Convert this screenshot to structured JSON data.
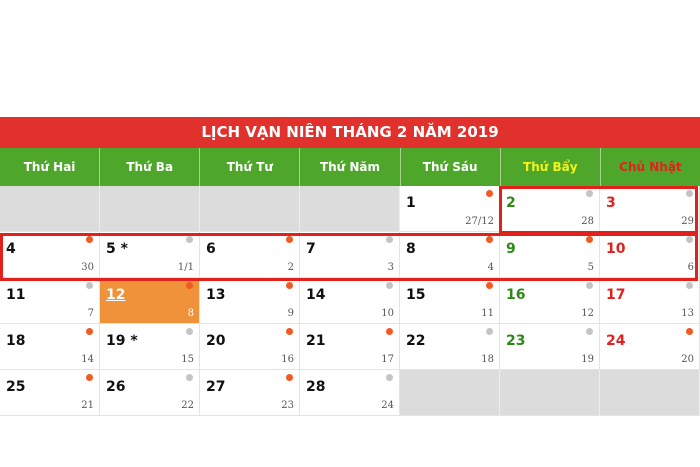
{
  "title": "LỊCH VẠN NIÊN THÁNG 2 NĂM 2019",
  "weekdays": [
    "Thứ Hai",
    "Thứ Ba",
    "Thứ Tư",
    "Thứ Năm",
    "Thứ Sáu",
    "Thứ Bẩy",
    "Chủ Nhật"
  ],
  "colors": {
    "title_bg": "#e0312c",
    "header_bg": "#4ea72a",
    "saturday_header": "#f5f11a",
    "sunday_header": "#e3211c",
    "today_bg": "#f0923a",
    "dot_orange": "#f05a23",
    "dot_gray": "#c4c4c4",
    "highlight_border": "#e0211c"
  },
  "today": 12,
  "weeks": [
    [
      null,
      null,
      null,
      null,
      {
        "day": "1",
        "lunar": "27/12",
        "dot": "orange"
      },
      {
        "day": "2",
        "lunar": "28",
        "dot": "gray"
      },
      {
        "day": "3",
        "lunar": "29",
        "dot": "gray"
      }
    ],
    [
      {
        "day": "4",
        "lunar": "30",
        "dot": "orange"
      },
      {
        "day": "5 *",
        "lunar": "1/1",
        "dot": "gray"
      },
      {
        "day": "6",
        "lunar": "2",
        "dot": "orange"
      },
      {
        "day": "7",
        "lunar": "3",
        "dot": "gray"
      },
      {
        "day": "8",
        "lunar": "4",
        "dot": "orange"
      },
      {
        "day": "9",
        "lunar": "5",
        "dot": "orange"
      },
      {
        "day": "10",
        "lunar": "6",
        "dot": "gray"
      }
    ],
    [
      {
        "day": "11",
        "lunar": "7",
        "dot": "gray"
      },
      {
        "day": "12",
        "lunar": "8",
        "dot": "orange"
      },
      {
        "day": "13",
        "lunar": "9",
        "dot": "orange"
      },
      {
        "day": "14",
        "lunar": "10",
        "dot": "gray"
      },
      {
        "day": "15",
        "lunar": "11",
        "dot": "orange"
      },
      {
        "day": "16",
        "lunar": "12",
        "dot": "gray"
      },
      {
        "day": "17",
        "lunar": "13",
        "dot": "gray"
      }
    ],
    [
      {
        "day": "18",
        "lunar": "14",
        "dot": "orange"
      },
      {
        "day": "19 *",
        "lunar": "15",
        "dot": "gray"
      },
      {
        "day": "20",
        "lunar": "16",
        "dot": "orange"
      },
      {
        "day": "21",
        "lunar": "17",
        "dot": "orange"
      },
      {
        "day": "22",
        "lunar": "18",
        "dot": "gray"
      },
      {
        "day": "23",
        "lunar": "19",
        "dot": "gray"
      },
      {
        "day": "24",
        "lunar": "20",
        "dot": "orange"
      }
    ],
    [
      {
        "day": "25",
        "lunar": "21",
        "dot": "orange"
      },
      {
        "day": "26",
        "lunar": "22",
        "dot": "gray"
      },
      {
        "day": "27",
        "lunar": "23",
        "dot": "orange"
      },
      {
        "day": "28",
        "lunar": "24",
        "dot": "gray"
      },
      null,
      null,
      null
    ]
  ]
}
